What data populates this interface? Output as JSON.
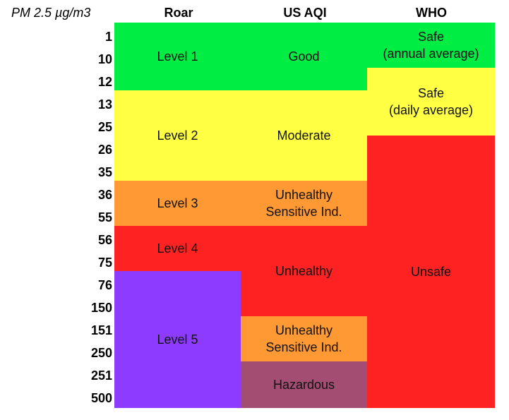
{
  "header": {
    "unit_label": "PM 2.5 µg/m3",
    "col_roar": "Roar",
    "col_usaqi": "US AQI",
    "col_who": "WHO"
  },
  "pm_values": [
    "1",
    "10",
    "12",
    "13",
    "25",
    "26",
    "35",
    "36",
    "55",
    "56",
    "75",
    "76",
    "150",
    "151",
    "250",
    "251",
    "500"
  ],
  "roar": [
    {
      "label": "Level 1",
      "color": "#00ee44"
    },
    {
      "label": "Level 2",
      "color": "#ffff44"
    },
    {
      "label": "Level 3",
      "color": "#ff9933"
    },
    {
      "label": "Level 4",
      "color": "#ff2222"
    },
    {
      "label": "Level 5",
      "color": "#8c3bff"
    }
  ],
  "us_aqi": [
    {
      "label": "Good",
      "color": "#00ee44"
    },
    {
      "label": "Moderate",
      "color": "#ffff44"
    },
    {
      "label": "Unhealthy\nSensitive Ind.",
      "color": "#ff9933"
    },
    {
      "label": "Unhealthy",
      "color": "#ff2222"
    },
    {
      "label": "Unhealthy\nSensitive Ind.",
      "color": "#ff9933"
    },
    {
      "label": "Hazardous",
      "color": "#a34d73"
    }
  ],
  "who": [
    {
      "label": "Safe\n(annual average)",
      "color": "#00ee44"
    },
    {
      "label": "Safe\n(daily average)",
      "color": "#ffff44"
    },
    {
      "label": "Unsafe",
      "color": "#ff2222"
    }
  ]
}
